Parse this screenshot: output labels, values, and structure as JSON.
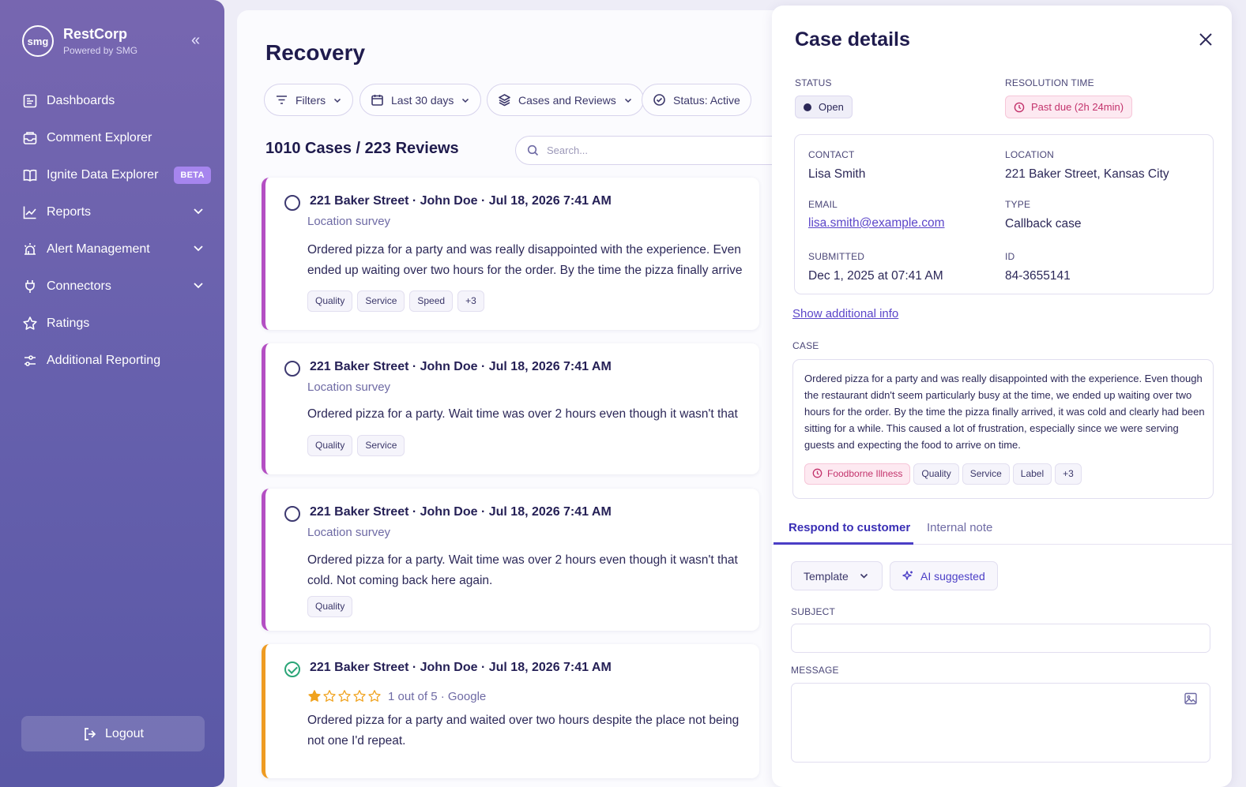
{
  "sidebar": {
    "logo_text": "smg",
    "brand": "RestCorp",
    "brand_sub": "Powered by SMG",
    "items": [
      {
        "label": "Dashboards",
        "icon": "dashboard-icon"
      },
      {
        "label": "Comment Explorer",
        "icon": "inbox-icon"
      },
      {
        "label": "Ignite Data Explorer",
        "icon": "book-icon",
        "badge": "BETA"
      },
      {
        "label": "Reports",
        "icon": "chart-line-icon"
      },
      {
        "label": "Alert Management",
        "icon": "alarm-icon"
      },
      {
        "label": "Connectors",
        "icon": "plug-icon"
      },
      {
        "label": "Ratings",
        "icon": "star-icon"
      },
      {
        "label": "Additional Reporting",
        "icon": "sliders-icon"
      }
    ],
    "logout": "Logout"
  },
  "main": {
    "title": "Recovery",
    "filters": {
      "filters": "Filters",
      "date": "Last 30 days",
      "type": "Cases and Reviews",
      "status": "Status: Active"
    },
    "count": "1010 Cases / 223 Reviews",
    "search_placeholder": "Search...",
    "cards": [
      {
        "title": "221 Baker Street · John Doe · Jul 18, 2026  7:41 AM",
        "subtitle": "Location survey",
        "body": "Ordered pizza for a party and was really disappointed with the experience. Even ended up waiting over two hours for the order. By the time the pizza finally arrive",
        "tags": [
          "Quality",
          "Service",
          "Speed",
          "+3"
        ]
      },
      {
        "title": "221 Baker Street · John Doe · Jul 18, 2026  7:41 AM",
        "subtitle": "Location survey",
        "body": "Ordered pizza for a party. Wait time was over 2 hours even though it wasn't that",
        "tags": [
          "Quality",
          "Service"
        ]
      },
      {
        "title": "221 Baker Street · John Doe · Jul 18, 2026  7:41 AM",
        "subtitle": "Location survey",
        "body": "Ordered pizza for a party. Wait time was over 2 hours even though it wasn't that cold. Not coming back here again.",
        "tags": [
          "Quality"
        ]
      },
      {
        "title": "221 Baker Street · John Doe · Jul 18, 2026  7:41 AM",
        "rating_text": "1 out of 5 · Google",
        "rating": 1,
        "rating_max": 5,
        "body": "Ordered pizza for a party and waited over two hours despite the place not being not one I'd repeat."
      }
    ]
  },
  "detail": {
    "title": "Case details",
    "status_label": "STATUS",
    "status": "Open",
    "resolution_label": "RESOLUTION TIME",
    "resolution": "Past due (2h 24min)",
    "contact_label": "CONTACT",
    "contact": "Lisa Smith",
    "location_label": "LOCATION",
    "location": "221 Baker Street, Kansas City",
    "email_label": "EMAIL",
    "email": "lisa.smith@example.com",
    "type_label": "TYPE",
    "type": "Callback case",
    "submitted_label": "SUBMITTED",
    "submitted": "Dec 1, 2025 at 07:41 AM",
    "id_label": "ID",
    "id": "84-3655141",
    "show_more": "Show additional info",
    "case_label": "CASE",
    "case_text": "Ordered pizza for a party and was really disappointed with the experience. Even though the restaurant didn't seem particularly busy at the time, we ended up waiting over two hours for the order. By the time the pizza finally arrived, it was cold and clearly had been sitting for a while. This caused a lot of frustration, especially since we were serving guests and expecting the food to arrive on time.",
    "case_tags": [
      "Foodborne Illness",
      "Quality",
      "Service",
      "Label",
      "+3"
    ],
    "tabs": [
      "Respond to customer",
      "Internal note"
    ],
    "template": "Template",
    "ai": "AI suggested",
    "subject_label": "SUBJECT",
    "message_label": "MESSAGE"
  },
  "colors": {
    "accent": "#4b3ec6",
    "case_border": "#b44fc3",
    "review_border": "#ee9b22",
    "due": "#c3336c"
  }
}
